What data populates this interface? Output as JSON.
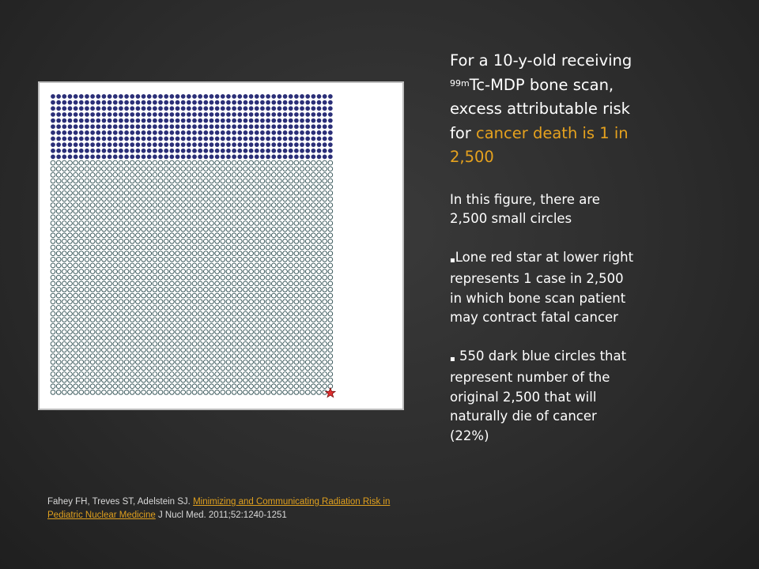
{
  "slide": {
    "headline": {
      "line1": "For a 10-y-old receiving",
      "sup": "99m",
      "line2_rest": "Tc-MDP bone scan,",
      "line3": "excess attributable risk",
      "line4_lead": "for ",
      "line4_accent": "cancer death is 1 in",
      "line5_accent": "2,500"
    },
    "circle_note": {
      "line1": "In this figure, there are",
      "line2": "2,500 small circles"
    },
    "bullets": [
      {
        "mark": "▪",
        "lines": [
          "Lone red star at lower right",
          "represents 1 case in 2,500",
          "in which bone scan patient",
          "may contract fatal cancer"
        ]
      },
      {
        "mark": "▪",
        "lines": [
          "550 dark blue circles that",
          "represent number of the",
          "original 2,500 that will",
          "naturally die of cancer",
          "(22%)"
        ]
      }
    ],
    "citation": {
      "authors": "Fahey FH, Treves ST, Adelstein SJ. ",
      "link_title": "Minimizing and Communicating Radiation Risk in Pediatric Nuclear Medicine",
      "journal": " J Nucl Med. 2011;52:1240-1251"
    }
  },
  "figure": {
    "total_circles": 2500,
    "dark_blue_circles": 550,
    "star_cases": 1,
    "colors": {
      "dark_circle": "#2b2f78",
      "light_circle_stroke": "#2f4f52",
      "star": "#e03030",
      "accent_text": "#e6a21e"
    }
  }
}
